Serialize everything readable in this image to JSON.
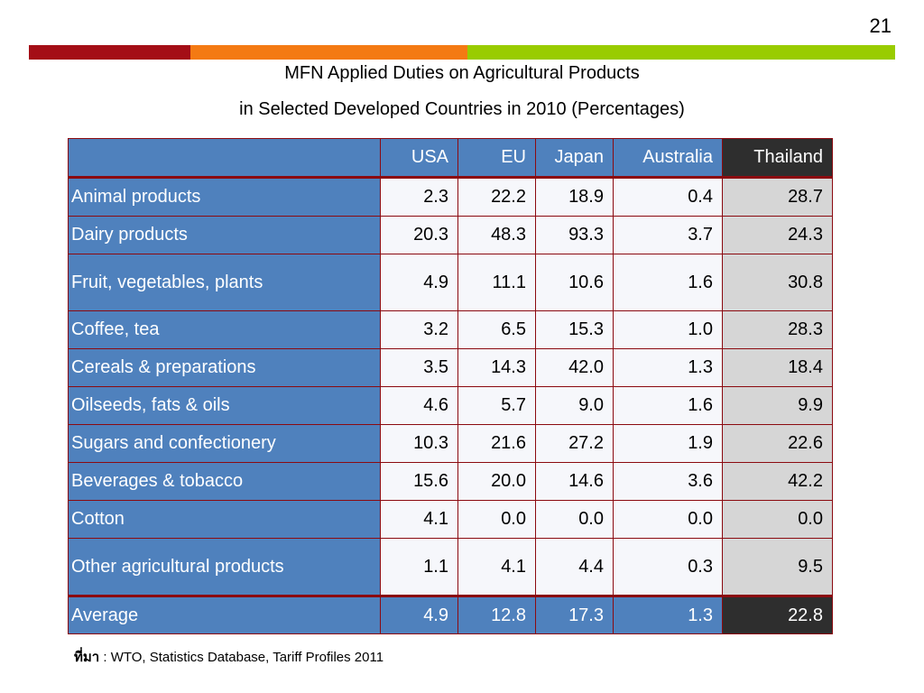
{
  "page_number": "21",
  "stripe_colors": [
    "#a40e16",
    "#f47a13",
    "#99cc00"
  ],
  "title_line1": "MFN Applied Duties on Agricultural Products",
  "title_line2": "in Selected Developed Countries in 2010 (Percentages)",
  "table": {
    "headers": [
      "",
      "USA",
      "EU",
      "Japan",
      "Australia",
      "Thailand"
    ],
    "rows": [
      {
        "label": "Animal products",
        "values": [
          "2.3",
          "22.2",
          "18.9",
          "0.4",
          "28.7"
        ]
      },
      {
        "label": "Dairy products",
        "values": [
          "20.3",
          "48.3",
          "93.3",
          "3.7",
          "24.3"
        ]
      },
      {
        "label": "Fruit, vegetables, plants",
        "values": [
          "4.9",
          "11.1",
          "10.6",
          "1.6",
          "30.8"
        ]
      },
      {
        "label": "Coffee, tea",
        "values": [
          "3.2",
          "6.5",
          "15.3",
          "1.0",
          "28.3"
        ]
      },
      {
        "label": "Cereals & preparations",
        "values": [
          "3.5",
          "14.3",
          "42.0",
          "1.3",
          "18.4"
        ]
      },
      {
        "label": "Oilseeds, fats & oils",
        "values": [
          "4.6",
          "5.7",
          "9.0",
          "1.6",
          "9.9"
        ]
      },
      {
        "label": "Sugars and confectionery",
        "values": [
          "10.3",
          "21.6",
          "27.2",
          "1.9",
          "22.6"
        ]
      },
      {
        "label": "Beverages & tobacco",
        "values": [
          "15.6",
          "20.0",
          "14.6",
          "3.6",
          "42.2"
        ]
      },
      {
        "label": "Cotton",
        "values": [
          "4.1",
          "0.0",
          "0.0",
          "0.0",
          "0.0"
        ]
      },
      {
        "label": "Other agricultural products",
        "values": [
          "1.1",
          "4.1",
          "4.4",
          "0.3",
          "9.5"
        ]
      }
    ],
    "average": {
      "label": "Average",
      "values": [
        "4.9",
        "12.8",
        "17.3",
        "1.3",
        "22.8"
      ]
    }
  },
  "source": {
    "prefix": "ที่มา",
    "text": " : WTO, Statistics Database, Tariff Profiles 2011"
  }
}
